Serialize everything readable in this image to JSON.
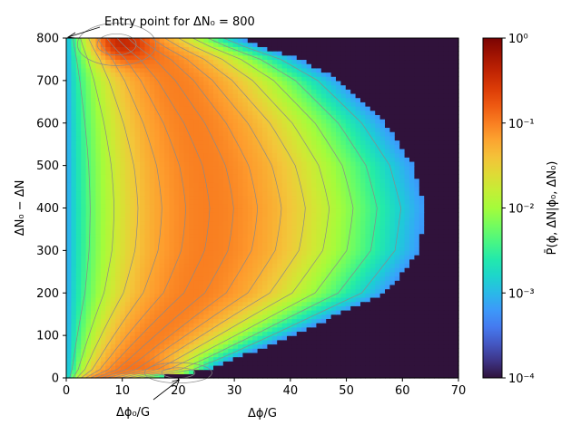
{
  "chart_data": {
    "type": "heatmap",
    "title": "",
    "xlabel": "Δϕ/G",
    "ylabel": "ΔN₀ − ΔN",
    "xlim": [
      0,
      70
    ],
    "ylim": [
      0,
      800
    ],
    "xticks": [
      "0",
      "10",
      "20",
      "30",
      "40",
      "50",
      "60",
      "70"
    ],
    "yticks": [
      "0",
      "100",
      "200",
      "300",
      "400",
      "500",
      "600",
      "700",
      "800"
    ],
    "colorbar": {
      "label": "P̄(ϕ, ΔN|ϕ₀, ΔN₀)",
      "scale": "log",
      "range": [
        0.0001,
        1
      ],
      "colormap": "turbo",
      "ticks": [
        {
          "value": 1,
          "label": "10⁰"
        },
        {
          "value": 0.1,
          "label": "10⁻¹"
        },
        {
          "value": 0.01,
          "label": "10⁻²"
        },
        {
          "value": 0.001,
          "label": "10⁻³"
        },
        {
          "value": 0.0001,
          "label": "10⁻⁴"
        }
      ]
    },
    "annotations": [
      {
        "text": "Entry point for ΔN₀ = 800",
        "point": [
          0,
          800
        ]
      },
      {
        "text": "Δϕ₀/G",
        "point": [
          20,
          0
        ]
      }
    ],
    "support_boundary": {
      "n": [
        0,
        20,
        50,
        100,
        200,
        300,
        400,
        500,
        600,
        700,
        750,
        780,
        800
      ],
      "phi_max": [
        15,
        25,
        31,
        40,
        57,
        63,
        64,
        62,
        57,
        49,
        42,
        35,
        31
      ]
    },
    "maxima": [
      {
        "phi": 20,
        "n": 12,
        "level": 0.2
      },
      {
        "phi": 9,
        "n": 785,
        "level": 0.2
      }
    ],
    "contour_count": 16
  }
}
